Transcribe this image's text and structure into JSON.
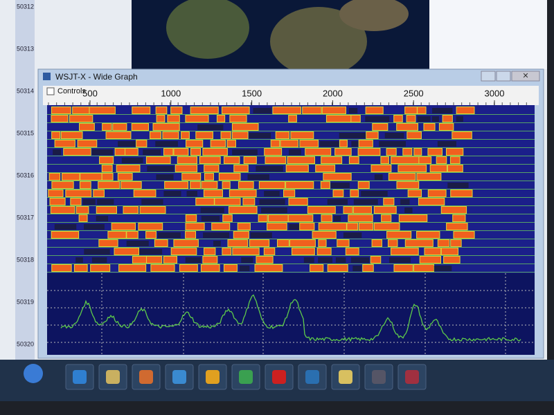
{
  "window": {
    "title": "WSJT-X - Wide Graph",
    "controls_label": "Controls"
  },
  "frequency_scale": {
    "ticks": [
      500,
      1000,
      1500,
      2000,
      2500,
      3000
    ]
  },
  "side_scale": {
    "labels": [
      "50312",
      "50313",
      "50314",
      "50315",
      "50316",
      "50317",
      "50318",
      "50319",
      "50320"
    ]
  }
}
